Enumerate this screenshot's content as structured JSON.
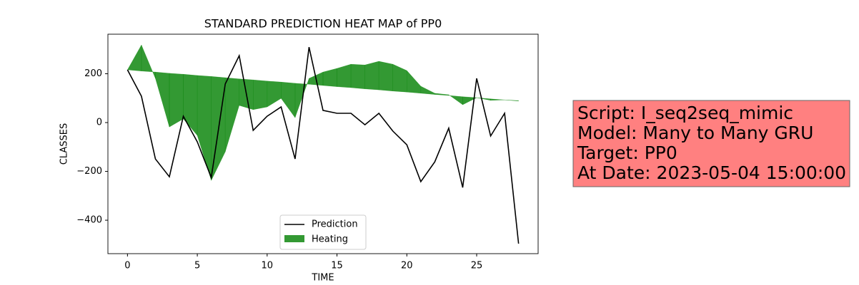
{
  "chart_data": {
    "type": "line",
    "title": "STANDARD PREDICTION HEAT MAP of PP0",
    "x_label": "TIME",
    "y_label": "CLASSES",
    "x": [
      0,
      1,
      2,
      3,
      4,
      5,
      6,
      7,
      8,
      9,
      10,
      11,
      12,
      13,
      14,
      15,
      16,
      17,
      18,
      19,
      20,
      21,
      22,
      23,
      24,
      25,
      26,
      27,
      28
    ],
    "series": [
      {
        "name": "Prediction",
        "color": "#000000",
        "values": [
          216,
          108,
          -149,
          -222,
          26,
          -79,
          -225,
          158,
          274,
          -32,
          26,
          64,
          -149,
          309,
          50,
          38,
          38,
          -9,
          38,
          -35,
          -91,
          -242,
          -161,
          -23,
          -266,
          181,
          -55,
          38,
          -496
        ]
      },
      {
        "name": "Heating",
        "color": "#008000",
        "fill": "band",
        "values": [
          216,
          318,
          181,
          -18,
          15,
          -53,
          -237,
          -120,
          70,
          53,
          64,
          99,
          20,
          181,
          207,
          222,
          239,
          236,
          251,
          239,
          213,
          149,
          120,
          114,
          73,
          102,
          91,
          93,
          90
        ],
        "lower": [
          216,
          211,
          207,
          202,
          198,
          193,
          189,
          184,
          179,
          175,
          170,
          166,
          161,
          157,
          152,
          147,
          143,
          138,
          134,
          129,
          125,
          120,
          115,
          111,
          106,
          102,
          97,
          93,
          88
        ]
      }
    ],
    "xlim": [
      -1.4,
      29.4
    ],
    "xticks": [
      0,
      5,
      10,
      15,
      20,
      25
    ],
    "ylim": [
      -537,
      362
    ],
    "yticks": [
      {
        "value": -400,
        "label": "−400"
      },
      {
        "value": -200,
        "label": "−200"
      },
      0,
      200
    ],
    "legend": "lower center",
    "annotation": [
      "Script: I_seq2seq_mimic",
      "Model: Many to Many GRU",
      "Target: PP0",
      "At Date: 2023-05-04 15:00:00"
    ],
    "annotation_color": "#ff8080"
  }
}
